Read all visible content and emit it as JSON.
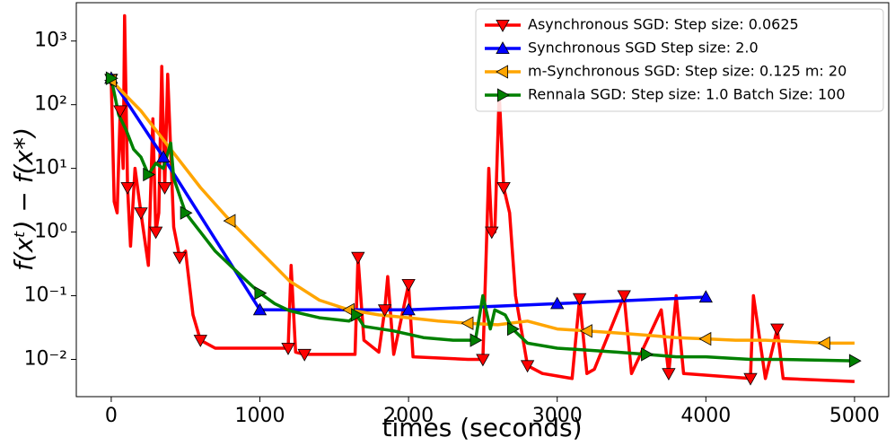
{
  "chart_data": {
    "type": "line",
    "xlabel": "times (seconds)",
    "ylabel": "f(xᵗ) − f(x*)",
    "xlim": [
      -235,
      5230
    ],
    "ylim": [
      0.0026,
      4000
    ],
    "ylog": true,
    "xticks": [
      0,
      1000,
      2000,
      3000,
      4000,
      5000
    ],
    "yticks": [
      {
        "value": 0.01,
        "label": "10⁻²"
      },
      {
        "value": 0.1,
        "label": "10⁻¹"
      },
      {
        "value": 1,
        "label": "10⁰"
      },
      {
        "value": 10,
        "label": "10¹"
      },
      {
        "value": 100,
        "label": "10²"
      },
      {
        "value": 1000,
        "label": "10³"
      }
    ],
    "legend": "upper right",
    "series": [
      {
        "name": "Asynchronous SGD: Step size: 0.0625",
        "color": "#ff0000",
        "marker": "down",
        "markevery": 3,
        "x": [
          0,
          20,
          40,
          60,
          80,
          90,
          110,
          130,
          160,
          200,
          250,
          280,
          300,
          320,
          340,
          360,
          380,
          420,
          460,
          500,
          550,
          600,
          700,
          1000,
          1190,
          1210,
          1240,
          1300,
          1500,
          1640,
          1660,
          1700,
          1800,
          1840,
          1860,
          1900,
          2000,
          2030,
          2400,
          2500,
          2520,
          2540,
          2560,
          2580,
          2610,
          2640,
          2680,
          2720,
          2800,
          2900,
          3100,
          3150,
          3200,
          3250,
          3450,
          3500,
          3700,
          3750,
          3800,
          3850,
          4300,
          4320,
          4400,
          4480,
          4520,
          5000
        ],
        "values": [
          250,
          3,
          2,
          80,
          10,
          2500,
          5,
          0.6,
          10,
          2,
          0.3,
          60,
          1,
          2,
          400,
          5,
          300,
          1.2,
          0.4,
          0.5,
          0.05,
          0.02,
          0.015,
          0.015,
          0.015,
          0.3,
          0.013,
          0.012,
          0.012,
          0.012,
          0.4,
          0.02,
          0.013,
          0.06,
          0.2,
          0.012,
          0.15,
          0.011,
          0.01,
          0.01,
          0.3,
          10,
          1,
          1,
          150,
          5,
          2,
          0.1,
          0.008,
          0.006,
          0.005,
          0.09,
          0.006,
          0.007,
          0.1,
          0.006,
          0.06,
          0.006,
          0.1,
          0.006,
          0.005,
          0.1,
          0.005,
          0.03,
          0.005,
          0.0045
        ]
      },
      {
        "name": "Synchronous SGD Step size: 2.0",
        "color": "#0000ff",
        "marker": "up",
        "markevery": 1,
        "x": [
          0,
          350,
          1000,
          2000,
          3000,
          4000
        ],
        "values": [
          260,
          15,
          0.06,
          0.06,
          0.075,
          0.095
        ]
      },
      {
        "name": "m-Synchronous  SGD: Step size: 0.125 m: 20",
        "color": "#ffa500",
        "marker": "left",
        "markevery": 4,
        "x": [
          0,
          200,
          400,
          600,
          800,
          1000,
          1200,
          1400,
          1600,
          1800,
          2000,
          2200,
          2400,
          2600,
          2800,
          3000,
          3200,
          3400,
          3600,
          3800,
          4000,
          4200,
          4400,
          4600,
          4800,
          5000
        ],
        "values": [
          240,
          80,
          20,
          5,
          1.5,
          0.5,
          0.17,
          0.085,
          0.06,
          0.05,
          0.045,
          0.04,
          0.037,
          0.035,
          0.04,
          0.03,
          0.028,
          0.026,
          0.024,
          0.022,
          0.021,
          0.02,
          0.02,
          0.019,
          0.018,
          0.018
        ]
      },
      {
        "name": "Rennala SGD: Step size: 1.0 Batch Size: 100",
        "color": "#008000",
        "marker": "right",
        "markevery": 5,
        "x": [
          0,
          50,
          100,
          150,
          200,
          250,
          300,
          350,
          400,
          420,
          500,
          600,
          700,
          800,
          900,
          1000,
          1100,
          1200,
          1400,
          1600,
          1650,
          1700,
          1900,
          2100,
          2300,
          2450,
          2500,
          2550,
          2580,
          2650,
          2700,
          2800,
          3000,
          3200,
          3400,
          3600,
          3800,
          4000,
          4300,
          4500,
          5000
        ],
        "values": [
          260,
          70,
          40,
          20,
          15,
          8,
          12,
          10,
          25,
          7,
          2,
          1,
          0.5,
          0.3,
          0.18,
          0.11,
          0.075,
          0.058,
          0.045,
          0.04,
          0.05,
          0.033,
          0.028,
          0.022,
          0.02,
          0.02,
          0.1,
          0.03,
          0.06,
          0.05,
          0.03,
          0.018,
          0.015,
          0.014,
          0.013,
          0.012,
          0.011,
          0.011,
          0.01,
          0.01,
          0.0095
        ]
      }
    ]
  }
}
